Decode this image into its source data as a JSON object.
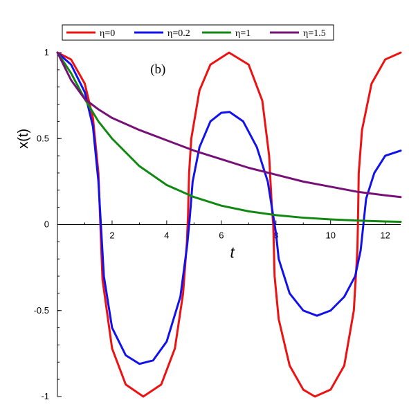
{
  "chart_data": {
    "type": "line",
    "xlabel": "t",
    "ylabel": "x(t)",
    "annotation": "(b)",
    "xlim": [
      0,
      12.566
    ],
    "ylim": [
      -1,
      1
    ],
    "xticks": [
      2,
      4,
      6,
      8,
      10,
      12
    ],
    "yticks": [
      -1,
      -0.5,
      0,
      0.5,
      1
    ],
    "xtick_labels": [
      "2",
      "4",
      "6",
      "8",
      "10",
      "12"
    ],
    "ytick_labels": [
      "-1",
      "-0.5",
      "0",
      "0.5",
      "1"
    ],
    "legend_position": "top",
    "series": [
      {
        "name": "η=0",
        "color": "#ee1111",
        "x": [
          0,
          0.5,
          1.0,
          1.3,
          1.5,
          1.571,
          1.65,
          2.0,
          2.5,
          3.142,
          3.8,
          4.3,
          4.6,
          4.74,
          4.78,
          4.82,
          4.9,
          5.2,
          5.6,
          6.283,
          7.0,
          7.5,
          7.75,
          7.85,
          7.9,
          7.95,
          8.1,
          8.5,
          9.0,
          9.425,
          10.0,
          10.5,
          10.85,
          10.98,
          11.0,
          11.03,
          11.15,
          11.5,
          12.0,
          12.566
        ],
        "y": [
          1,
          0.96,
          0.82,
          0.62,
          0.3,
          0,
          -0.32,
          -0.72,
          -0.93,
          -1,
          -0.93,
          -0.72,
          -0.4,
          -0.1,
          0.05,
          0.3,
          0.5,
          0.78,
          0.93,
          1,
          0.93,
          0.72,
          0.4,
          0.1,
          0,
          -0.3,
          -0.55,
          -0.82,
          -0.96,
          -1,
          -0.96,
          -0.82,
          -0.5,
          -0.15,
          0,
          0.3,
          0.55,
          0.82,
          0.96,
          1
        ]
      },
      {
        "name": "η=0.2",
        "color": "#1111ee",
        "x": [
          0,
          0.5,
          1.0,
          1.3,
          1.5,
          1.59,
          1.7,
          2.0,
          2.5,
          3.0,
          3.5,
          4.0,
          4.5,
          4.75,
          4.85,
          4.95,
          5.2,
          5.6,
          6.0,
          6.3,
          6.8,
          7.3,
          7.7,
          7.9,
          8.0,
          8.1,
          8.5,
          9.0,
          9.5,
          10.0,
          10.5,
          10.9,
          11.1,
          11.2,
          11.3,
          11.6,
          12.0,
          12.566
        ],
        "y": [
          1,
          0.93,
          0.77,
          0.57,
          0.25,
          0,
          -0.3,
          -0.6,
          -0.76,
          -0.81,
          -0.79,
          -0.68,
          -0.42,
          -0.12,
          0.05,
          0.25,
          0.45,
          0.6,
          0.65,
          0.655,
          0.6,
          0.45,
          0.25,
          0.05,
          -0.05,
          -0.2,
          -0.4,
          -0.5,
          -0.53,
          -0.5,
          -0.42,
          -0.3,
          -0.15,
          0,
          0.15,
          0.3,
          0.4,
          0.43
        ]
      },
      {
        "name": "η=1",
        "color": "#118811",
        "x": [
          0,
          0.5,
          1.0,
          1.5,
          2.0,
          3.0,
          4.0,
          5.0,
          6.0,
          7.0,
          8.0,
          9.0,
          10.0,
          11.0,
          12.0,
          12.566
        ],
        "y": [
          1,
          0.88,
          0.73,
          0.6,
          0.5,
          0.34,
          0.23,
          0.16,
          0.11,
          0.077,
          0.055,
          0.04,
          0.03,
          0.023,
          0.018,
          0.016
        ]
      },
      {
        "name": "η=1.5",
        "color": "#771177",
        "x": [
          0,
          0.5,
          1.0,
          1.5,
          2.0,
          3.0,
          4.0,
          5.0,
          6.0,
          7.0,
          8.0,
          9.0,
          10.0,
          11.0,
          12.0,
          12.566
        ],
        "y": [
          1,
          0.84,
          0.73,
          0.67,
          0.62,
          0.55,
          0.49,
          0.43,
          0.38,
          0.33,
          0.29,
          0.25,
          0.22,
          0.19,
          0.17,
          0.16
        ]
      }
    ]
  }
}
